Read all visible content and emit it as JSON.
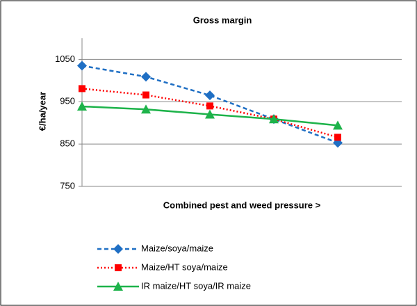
{
  "chart_data": {
    "type": "line",
    "title": "Gross margin",
    "y_label": "€/ha/year",
    "x_label": "Combined pest and weed pressure  >",
    "categories": [
      null,
      null,
      null,
      null,
      null
    ],
    "ylim": [
      750,
      1100
    ],
    "yticks": [
      750,
      850,
      950,
      1050
    ],
    "grid": true,
    "legend": "bottom",
    "series": [
      {
        "name": "Maize/soya/maize",
        "color": "#1f6fc4",
        "marker": "diamond",
        "dash": "6,4",
        "values": [
          1035,
          1009,
          965,
          909,
          853
        ]
      },
      {
        "name": "Maize/HT soya/maize",
        "color": "#ff0000",
        "marker": "square",
        "dash": "2,3",
        "values": [
          981,
          966,
          940,
          909,
          866
        ]
      },
      {
        "name": "IR maize/HT soya/IR maize",
        "color": "#1db34a",
        "marker": "triangle",
        "dash": "none",
        "values": [
          939,
          932,
          920,
          909,
          894
        ]
      }
    ]
  }
}
